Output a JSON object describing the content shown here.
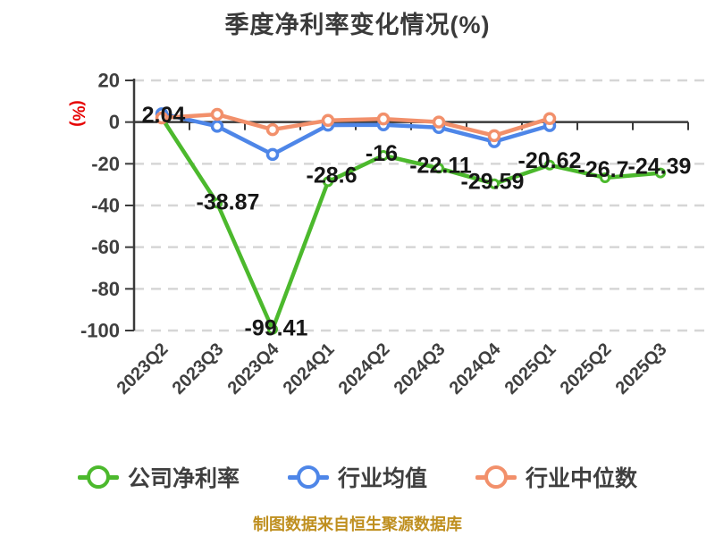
{
  "title": "季度净利率变化情况(%)",
  "footer": "制图数据来自恒生聚源数据库",
  "colors": {
    "title": "#3a3a3a",
    "axis": "#3a3a3a",
    "grid": "#d6d6d6",
    "tick_label": "#3f3f3f",
    "data_label": "#161616",
    "unit_label": "#e60000",
    "footer": "#bf8f1f",
    "series_green": "#4cb92d",
    "series_blue": "#4e86e8",
    "series_orange": "#f2906b"
  },
  "chart_data": {
    "type": "line",
    "title": "季度净利率变化情况(%)",
    "ylabel": "(%)",
    "xlabel": "",
    "ylim": [
      -100,
      20
    ],
    "yticks": [
      20,
      0,
      -20,
      -40,
      -60,
      -80,
      -100
    ],
    "grid": "horizontal-dashed",
    "legend_position": "bottom",
    "categories": [
      "2023Q2",
      "2023Q3",
      "2023Q4",
      "2024Q1",
      "2024Q2",
      "2024Q3",
      "2024Q4",
      "2025Q1",
      "2025Q2",
      "2025Q3"
    ],
    "series": [
      {
        "name": "公司净利率",
        "color": "#4cb92d",
        "values": [
          2.04,
          -38.87,
          -99.41,
          -28.6,
          -16,
          -22.11,
          -29.59,
          -20.62,
          -26.7,
          -24.39
        ],
        "labels": [
          "2.04",
          "-38.87",
          "-99.41",
          "-28.6",
          "-16",
          "-22.11",
          "-29.59",
          "-20.62",
          "-26.7",
          "-24.39"
        ]
      },
      {
        "name": "行业均值",
        "color": "#4e86e8",
        "values": [
          4,
          -2,
          -15.5,
          -1.5,
          -1.3,
          -2.6,
          -9.4,
          -1.7,
          null,
          null
        ],
        "labels": []
      },
      {
        "name": "行业中位数",
        "color": "#f2906b",
        "values": [
          2,
          3.7,
          -3.6,
          0.8,
          1.5,
          0,
          -6.5,
          1.7,
          null,
          null
        ],
        "labels": []
      }
    ]
  }
}
